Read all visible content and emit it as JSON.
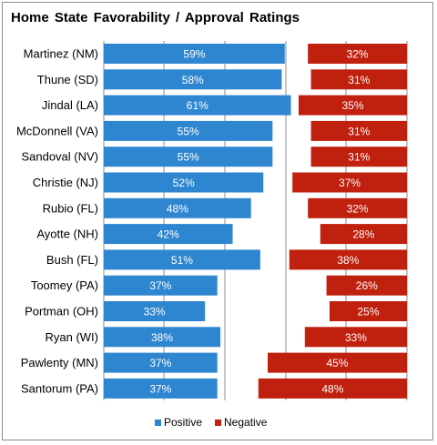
{
  "chart_data": {
    "type": "bar",
    "title": "Home State Favorability / Approval Ratings",
    "categories": [
      "Martinez (NM)",
      "Thune (SD)",
      "Jindal (LA)",
      "McDonnell (VA)",
      "Sandoval (NV)",
      "Christie (NJ)",
      "Rubio (FL)",
      "Ayotte (NH)",
      "Bush (FL)",
      "Toomey (PA)",
      "Portman (OH)",
      "Ryan (WI)",
      "Pawlenty (MN)",
      "Santorum (PA)"
    ],
    "series": [
      {
        "name": "Positive",
        "color": "#2e86d0",
        "values": [
          59,
          58,
          61,
          55,
          55,
          52,
          48,
          42,
          51,
          37,
          33,
          38,
          37,
          37
        ],
        "labels": [
          "59%",
          "58%",
          "61%",
          "55%",
          "55%",
          "52%",
          "48%",
          "42%",
          "51%",
          "37%",
          "33%",
          "38%",
          "37%",
          "37%"
        ]
      },
      {
        "name": "Negative",
        "color": "#c0200e",
        "values": [
          32,
          31,
          35,
          31,
          31,
          37,
          32,
          28,
          38,
          26,
          25,
          33,
          45,
          48
        ],
        "labels": [
          "32%",
          "31%",
          "35%",
          "31%",
          "31%",
          "37%",
          "32%",
          "28%",
          "38%",
          "26%",
          "25%",
          "33%",
          "45%",
          "48%"
        ]
      }
    ],
    "grid": true,
    "legend_position": "bottom"
  }
}
